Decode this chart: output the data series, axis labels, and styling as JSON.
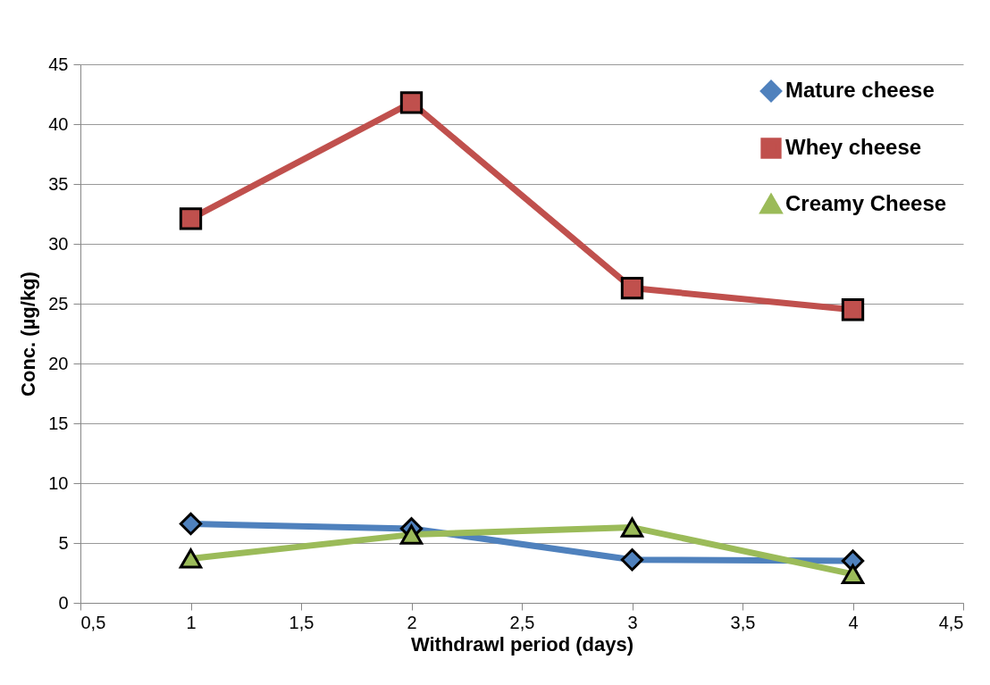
{
  "chart_data": {
    "type": "line",
    "xlabel": "Withdrawl period (days)",
    "ylabel": "Conc. (µg/kg)",
    "x": [
      1,
      2,
      3,
      4
    ],
    "series": [
      {
        "name": "Mature cheese",
        "color": "#4f81bd",
        "marker": "diamond",
        "values": [
          6.6,
          6.2,
          3.6,
          3.5
        ]
      },
      {
        "name": "Whey    cheese",
        "color": "#c0504d",
        "marker": "square",
        "values": [
          32.1,
          41.8,
          26.3,
          24.5
        ]
      },
      {
        "name": "Creamy Cheese",
        "color": "#9bbb59",
        "marker": "triangle",
        "values": [
          3.7,
          5.7,
          6.3,
          2.4
        ]
      }
    ],
    "xlim": [
      0.5,
      4.5
    ],
    "xticks": [
      {
        "value": 0.5,
        "label": "0,5"
      },
      1,
      {
        "value": 1.5,
        "label": "1,5"
      },
      2,
      {
        "value": 2.5,
        "label": "2,5"
      },
      3,
      {
        "value": 3.5,
        "label": "3,5"
      },
      4,
      {
        "value": 4.5,
        "label": "4,5"
      }
    ],
    "ylim": [
      0,
      45
    ],
    "yticks": [
      0,
      5,
      10,
      15,
      20,
      25,
      30,
      35,
      40,
      45
    ],
    "grid": "y",
    "legend": "top right"
  }
}
